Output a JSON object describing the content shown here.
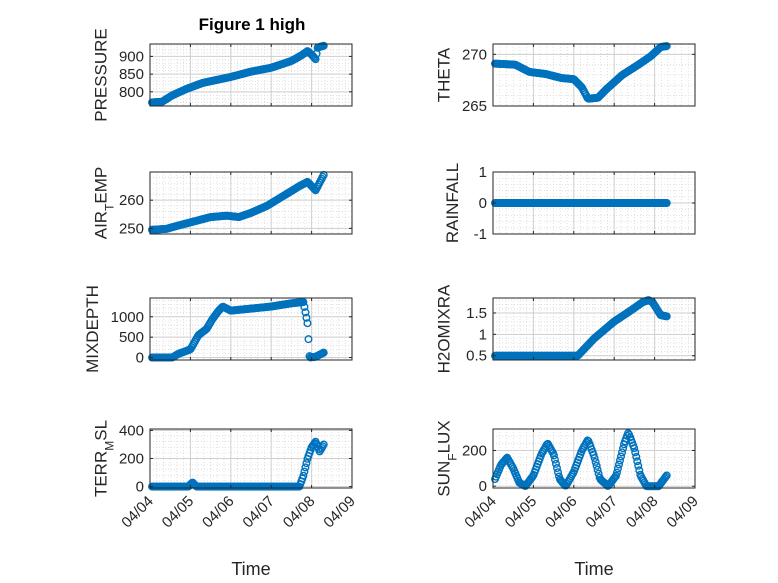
{
  "figure": {
    "title": "Figure 1 high",
    "xlabel": "Time",
    "marker_color": "#0072BD",
    "axis_color": "#262626",
    "grid_color": "#d9d9d9"
  },
  "chart_data": [
    {
      "type": "scatter",
      "ylabel": "PRESSURE",
      "title": "Figure 1 high",
      "ylim": [
        760,
        935
      ],
      "yticks": [
        800,
        850,
        900
      ],
      "xlim": [
        0,
        5
      ],
      "xticks": [
        "04/04",
        "04/05",
        "04/06",
        "04/07",
        "04/08",
        "04/09"
      ],
      "anchors": [
        [
          0.05,
          770
        ],
        [
          0.3,
          772
        ],
        [
          0.55,
          790
        ],
        [
          0.9,
          808
        ],
        [
          1.3,
          825
        ],
        [
          2.0,
          842
        ],
        [
          2.5,
          857
        ],
        [
          3.0,
          868
        ],
        [
          3.5,
          887
        ],
        [
          3.75,
          903
        ],
        [
          3.9,
          915
        ],
        [
          4.0,
          905
        ],
        [
          4.1,
          892
        ],
        [
          4.15,
          925
        ],
        [
          4.3,
          930
        ]
      ]
    },
    {
      "type": "scatter",
      "ylabel": "THETA",
      "ylim": [
        265,
        271
      ],
      "yticks": [
        265,
        270
      ],
      "xlim": [
        0,
        5
      ],
      "xticks": [
        "04/04",
        "04/05",
        "04/06",
        "04/07",
        "04/08",
        "04/09"
      ],
      "anchors": [
        [
          0.05,
          269.1
        ],
        [
          0.55,
          269.0
        ],
        [
          0.9,
          268.3
        ],
        [
          1.3,
          268.1
        ],
        [
          1.7,
          267.7
        ],
        [
          2.0,
          267.6
        ],
        [
          2.2,
          266.8
        ],
        [
          2.35,
          265.7
        ],
        [
          2.6,
          265.8
        ],
        [
          2.8,
          266.6
        ],
        [
          3.2,
          268.0
        ],
        [
          3.6,
          269.0
        ],
        [
          3.9,
          269.8
        ],
        [
          4.15,
          270.7
        ],
        [
          4.3,
          270.8
        ]
      ]
    },
    {
      "type": "scatter",
      "ylabel": "AIR_TEMP",
      "ylabel_main": "AIR",
      "ylabel_sub": "T",
      "ylabel_tail": "EMP",
      "ylim": [
        248,
        270
      ],
      "yticks": [
        250,
        260
      ],
      "xlim": [
        0,
        5
      ],
      "xticks": [
        "04/04",
        "04/05",
        "04/06",
        "04/07",
        "04/08",
        "04/09"
      ],
      "anchors": [
        [
          0.05,
          249.5
        ],
        [
          0.4,
          249.8
        ],
        [
          0.7,
          251.0
        ],
        [
          1.1,
          252.5
        ],
        [
          1.5,
          254.0
        ],
        [
          1.9,
          254.5
        ],
        [
          2.2,
          254.0
        ],
        [
          2.5,
          255.5
        ],
        [
          2.9,
          258.0
        ],
        [
          3.3,
          261.5
        ],
        [
          3.7,
          265.0
        ],
        [
          3.9,
          266.5
        ],
        [
          4.0,
          265.0
        ],
        [
          4.1,
          263.5
        ],
        [
          4.3,
          269.0
        ]
      ]
    },
    {
      "type": "scatter",
      "ylabel": "RAINFALL",
      "ylim": [
        -1,
        1
      ],
      "yticks": [
        -1,
        0,
        1
      ],
      "xlim": [
        0,
        5
      ],
      "xticks": [
        "04/04",
        "04/05",
        "04/06",
        "04/07",
        "04/08",
        "04/09"
      ],
      "anchors": [
        [
          0.05,
          0
        ],
        [
          4.3,
          0
        ]
      ]
    },
    {
      "type": "scatter",
      "ylabel": "MIXDEPTH",
      "ylim": [
        -60,
        1460
      ],
      "yticks": [
        0,
        500,
        1000
      ],
      "xlim": [
        0,
        5
      ],
      "xticks": [
        "04/04",
        "04/05",
        "04/06",
        "04/07",
        "04/08",
        "04/09"
      ],
      "anchors": [
        [
          0.05,
          0
        ],
        [
          0.55,
          0
        ],
        [
          0.7,
          90
        ],
        [
          1.0,
          200
        ],
        [
          1.2,
          550
        ],
        [
          1.4,
          700
        ],
        [
          1.55,
          950
        ],
        [
          1.7,
          1150
        ],
        [
          1.8,
          1250
        ],
        [
          2.0,
          1150
        ],
        [
          2.5,
          1200
        ],
        [
          3.0,
          1250
        ],
        [
          3.5,
          1330
        ],
        [
          3.8,
          1360
        ],
        [
          3.9,
          830
        ],
        [
          3.95,
          0
        ],
        [
          4.1,
          20
        ],
        [
          4.3,
          120
        ]
      ]
    },
    {
      "type": "scatter",
      "ylabel": "H2OMIXRA",
      "ylim": [
        0.4,
        1.85
      ],
      "yticks": [
        0.5,
        1,
        1.5
      ],
      "xlim": [
        0,
        5
      ],
      "xticks": [
        "04/04",
        "04/05",
        "04/06",
        "04/07",
        "04/08",
        "04/09"
      ],
      "anchors": [
        [
          0.05,
          0.5
        ],
        [
          2.1,
          0.5
        ],
        [
          2.2,
          0.6
        ],
        [
          2.5,
          0.9
        ],
        [
          3.0,
          1.3
        ],
        [
          3.4,
          1.55
        ],
        [
          3.7,
          1.75
        ],
        [
          3.85,
          1.8
        ],
        [
          3.95,
          1.75
        ],
        [
          4.05,
          1.6
        ],
        [
          4.15,
          1.45
        ],
        [
          4.3,
          1.42
        ]
      ]
    },
    {
      "type": "scatter",
      "ylabel": "TERR_MSL",
      "ylabel_main": "TERR",
      "ylabel_sub": "M",
      "ylabel_tail": "SL",
      "ylim": [
        -10,
        410
      ],
      "yticks": [
        0,
        200,
        400
      ],
      "xlim": [
        0,
        5
      ],
      "xticks": [
        "04/04",
        "04/05",
        "04/06",
        "04/07",
        "04/08",
        "04/09"
      ],
      "anchors": [
        [
          0.05,
          0
        ],
        [
          0.95,
          0
        ],
        [
          1.05,
          30
        ],
        [
          1.15,
          0
        ],
        [
          3.7,
          0
        ],
        [
          3.8,
          80
        ],
        [
          3.9,
          200
        ],
        [
          4.0,
          280
        ],
        [
          4.1,
          320
        ],
        [
          4.2,
          250
        ],
        [
          4.3,
          300
        ]
      ]
    },
    {
      "type": "scatter",
      "ylabel": "SUN_FLUX",
      "ylabel_main": "SUN",
      "ylabel_sub": "F",
      "ylabel_tail": "LUX",
      "ylim": [
        -10,
        320
      ],
      "yticks": [
        0,
        200
      ],
      "xlim": [
        0,
        5
      ],
      "xticks": [
        "04/04",
        "04/05",
        "04/06",
        "04/07",
        "04/08",
        "04/09"
      ],
      "anchors": [
        [
          0.05,
          40
        ],
        [
          0.2,
          120
        ],
        [
          0.35,
          160
        ],
        [
          0.5,
          100
        ],
        [
          0.65,
          20
        ],
        [
          0.8,
          0
        ],
        [
          1.0,
          60
        ],
        [
          1.2,
          180
        ],
        [
          1.35,
          240
        ],
        [
          1.5,
          180
        ],
        [
          1.65,
          40
        ],
        [
          1.8,
          0
        ],
        [
          2.0,
          80
        ],
        [
          2.2,
          200
        ],
        [
          2.35,
          260
        ],
        [
          2.5,
          170
        ],
        [
          2.65,
          40
        ],
        [
          2.85,
          0
        ],
        [
          3.05,
          60
        ],
        [
          3.25,
          240
        ],
        [
          3.35,
          300
        ],
        [
          3.5,
          210
        ],
        [
          3.65,
          60
        ],
        [
          3.8,
          0
        ],
        [
          4.1,
          0
        ],
        [
          4.3,
          60
        ]
      ]
    }
  ]
}
